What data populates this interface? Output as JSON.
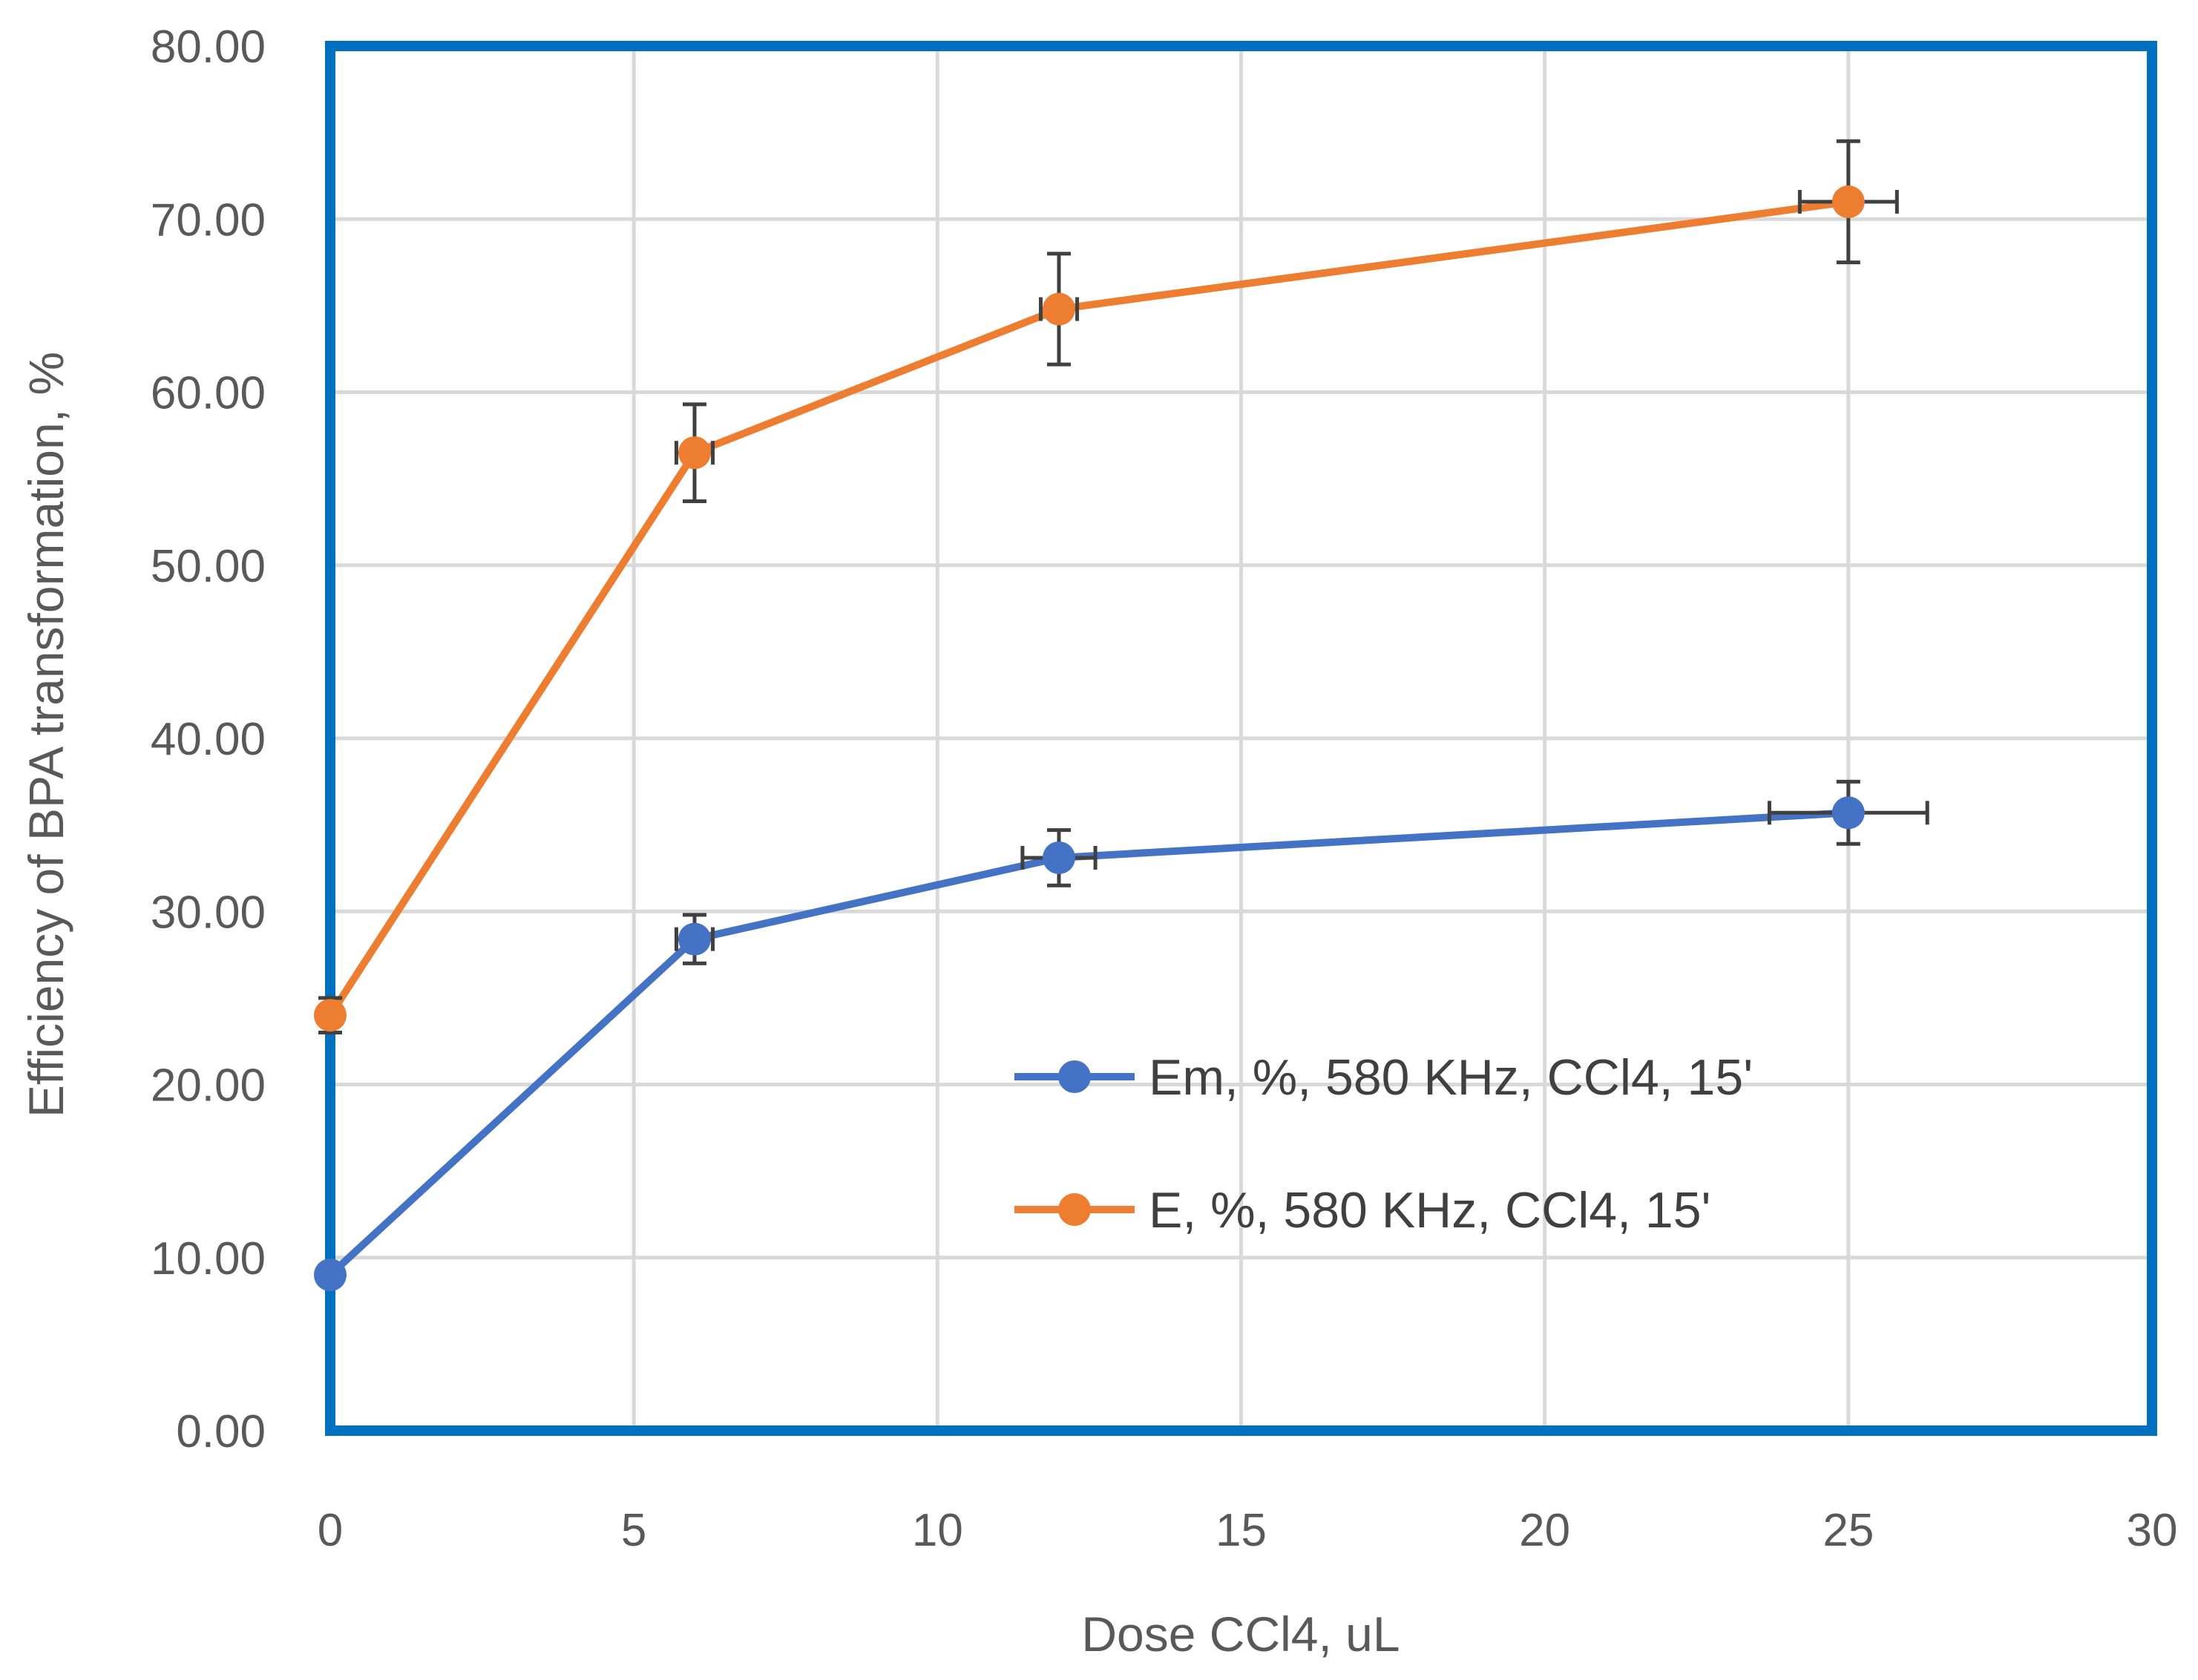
{
  "chart_data": {
    "type": "scatter",
    "xlabel": "Dose CCl4, uL",
    "ylabel": "Efficiency of BPA transformation, %",
    "xlim": [
      0,
      30
    ],
    "ylim": [
      0,
      80
    ],
    "x_ticks": [
      "0",
      "5",
      "10",
      "15",
      "20",
      "25",
      "30"
    ],
    "y_ticks": [
      "0.00",
      "10.00",
      "20.00",
      "30.00",
      "40.00",
      "50.00",
      "60.00",
      "70.00",
      "80.00"
    ],
    "grid": true,
    "legend_position": "center-right",
    "plot_border_color": "#0070c0",
    "series": [
      {
        "name": "Em, %, 580 KHz, CCl4, 15'",
        "color": "#4472c4",
        "x": [
          0,
          6,
          12,
          25
        ],
        "y": [
          9.0,
          28.4,
          33.1,
          35.7
        ],
        "y_err": [
          0,
          1.4,
          1.6,
          1.8
        ],
        "x_err": [
          0,
          0.3,
          0.6,
          1.3
        ]
      },
      {
        "name": "E, %, 580 KHz, CCl4, 15'",
        "color": "#ed7d31",
        "x": [
          0,
          6,
          12,
          25
        ],
        "y": [
          24.0,
          56.5,
          64.8,
          71.0
        ],
        "y_err": [
          1.0,
          2.8,
          3.2,
          3.5
        ],
        "x_err": [
          0,
          0.3,
          0.3,
          0.8
        ]
      }
    ]
  }
}
